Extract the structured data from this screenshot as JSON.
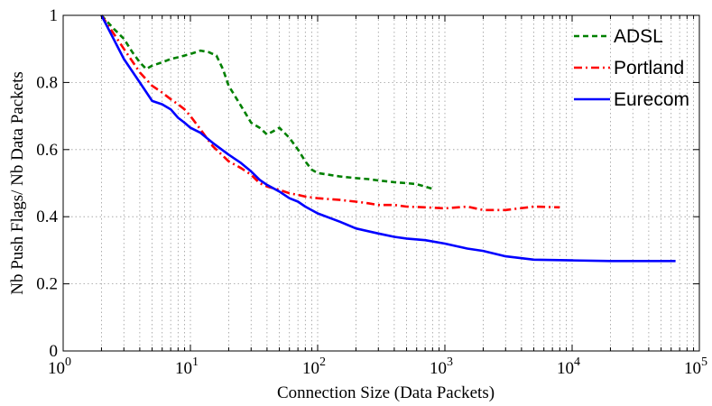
{
  "chart_data": {
    "type": "line",
    "xscale": "log",
    "xlim": [
      1,
      100000
    ],
    "ylim": [
      0,
      1
    ],
    "xlabel": "Connection Size (Data Packets)",
    "ylabel": "Nb Push Flags/ Nb Data Packets",
    "grid": true,
    "legend_position": "top-right",
    "x_ticks": [
      {
        "base": "10",
        "exp": "0",
        "value": 1
      },
      {
        "base": "10",
        "exp": "1",
        "value": 10
      },
      {
        "base": "10",
        "exp": "2",
        "value": 100
      },
      {
        "base": "10",
        "exp": "3",
        "value": 1000
      },
      {
        "base": "10",
        "exp": "4",
        "value": 10000
      },
      {
        "base": "10",
        "exp": "5",
        "value": 100000
      }
    ],
    "y_ticks": [
      {
        "label": "0",
        "value": 0
      },
      {
        "label": "0.2",
        "value": 0.2
      },
      {
        "label": "0.4",
        "value": 0.4
      },
      {
        "label": "0.6",
        "value": 0.6
      },
      {
        "label": "0.8",
        "value": 0.8
      },
      {
        "label": "1",
        "value": 1
      }
    ],
    "series": [
      {
        "name": "ADSL",
        "color": "#008000",
        "dash": "dashed",
        "x": [
          2,
          2.5,
          3,
          3.5,
          4,
          4.5,
          5,
          6,
          7,
          8,
          10,
          12,
          14,
          16,
          18,
          20,
          25,
          30,
          35,
          40,
          45,
          50,
          60,
          70,
          80,
          90,
          100,
          150,
          200,
          250,
          300,
          400,
          500,
          600,
          800
        ],
        "y": [
          1.0,
          0.96,
          0.93,
          0.89,
          0.86,
          0.84,
          0.85,
          0.86,
          0.87,
          0.875,
          0.885,
          0.895,
          0.89,
          0.88,
          0.84,
          0.79,
          0.73,
          0.68,
          0.665,
          0.645,
          0.655,
          0.665,
          0.635,
          0.6,
          0.565,
          0.54,
          0.53,
          0.52,
          0.515,
          0.512,
          0.508,
          0.503,
          0.5,
          0.497,
          0.483
        ]
      },
      {
        "name": "Portland",
        "color": "#ff0000",
        "dash": "dashdot",
        "x": [
          2,
          3,
          4,
          5,
          6,
          7,
          8,
          9,
          10,
          12,
          15,
          20,
          25,
          30,
          35,
          40,
          50,
          60,
          70,
          80,
          100,
          150,
          200,
          250,
          300,
          400,
          500,
          700,
          1000,
          1500,
          2000,
          3000,
          5000,
          8000
        ],
        "y": [
          1.0,
          0.9,
          0.83,
          0.79,
          0.77,
          0.75,
          0.735,
          0.72,
          0.7,
          0.66,
          0.61,
          0.565,
          0.545,
          0.525,
          0.5,
          0.49,
          0.48,
          0.47,
          0.465,
          0.46,
          0.455,
          0.45,
          0.445,
          0.44,
          0.435,
          0.435,
          0.43,
          0.428,
          0.425,
          0.43,
          0.42,
          0.42,
          0.43,
          0.428
        ]
      },
      {
        "name": "Eurecom",
        "color": "#0000ff",
        "dash": "solid",
        "x": [
          2,
          3,
          4,
          5,
          6,
          7,
          8,
          9,
          10,
          12,
          15,
          20,
          25,
          30,
          35,
          40,
          50,
          60,
          70,
          80,
          100,
          150,
          200,
          300,
          400,
          500,
          700,
          1000,
          1500,
          2000,
          3000,
          5000,
          10000,
          20000,
          65000
        ],
        "y": [
          1.0,
          0.87,
          0.8,
          0.745,
          0.735,
          0.72,
          0.695,
          0.68,
          0.665,
          0.65,
          0.62,
          0.585,
          0.56,
          0.535,
          0.51,
          0.495,
          0.475,
          0.455,
          0.445,
          0.43,
          0.41,
          0.385,
          0.365,
          0.35,
          0.34,
          0.335,
          0.33,
          0.32,
          0.305,
          0.298,
          0.282,
          0.272,
          0.27,
          0.268,
          0.268
        ]
      }
    ]
  }
}
